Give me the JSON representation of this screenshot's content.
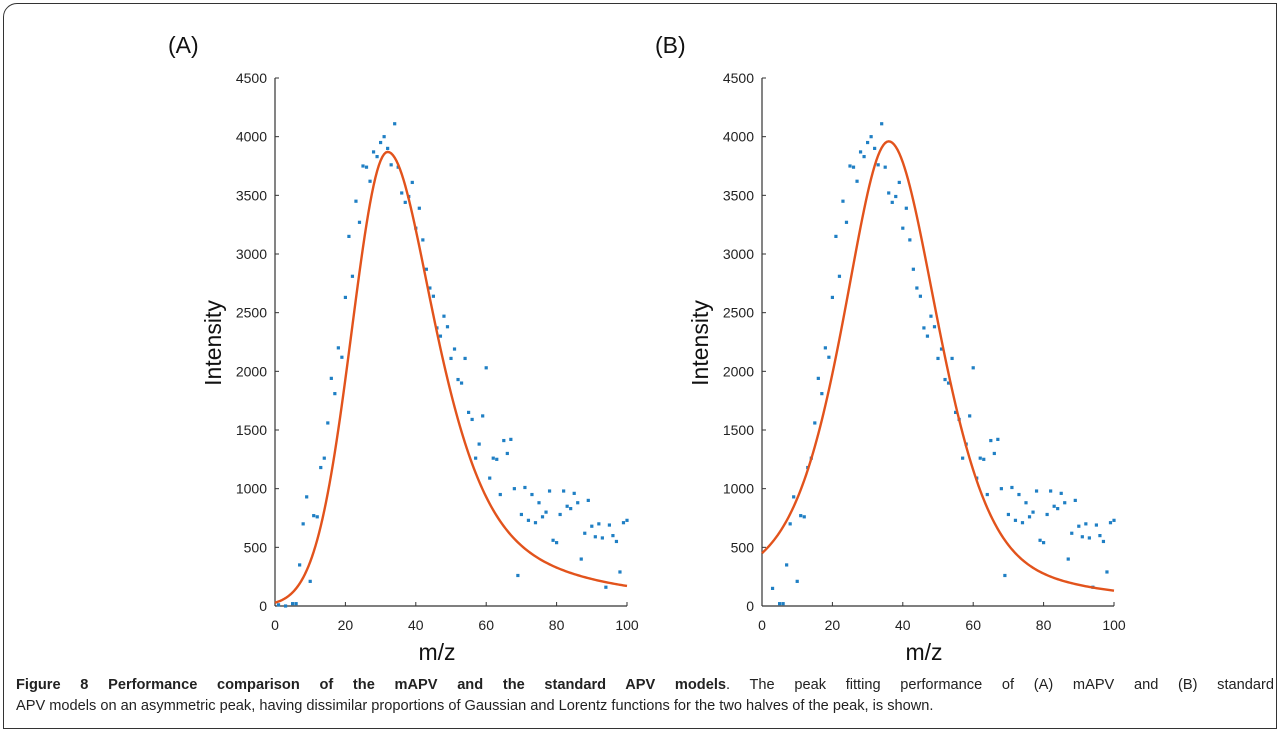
{
  "colors": {
    "points": "#1f7fc4",
    "fit": "#e2531c",
    "axis": "#333333"
  },
  "chart_data": [
    {
      "type": "scatter",
      "panel_label": "(A)",
      "xlabel": "m/z",
      "ylabel": "Intensity",
      "xlim": [
        0,
        100
      ],
      "ylim": [
        0,
        4500
      ],
      "xticks": [
        "0",
        "20",
        "40",
        "60",
        "80",
        "100"
      ],
      "yticks": [
        "0",
        "500",
        "1000",
        "1500",
        "2000",
        "2500",
        "3000",
        "3500",
        "4000",
        "4500"
      ],
      "grid": false,
      "fit_peak": {
        "x": 32,
        "y": 3870
      },
      "series": [
        {
          "kind": "points",
          "x": [
            1,
            3,
            5,
            6,
            7,
            8,
            9,
            10,
            11,
            12,
            13,
            14,
            15,
            16,
            17,
            18,
            19,
            20,
            21,
            22,
            23,
            24,
            25,
            26,
            27,
            28,
            29,
            30,
            31,
            32,
            33,
            34,
            35,
            36,
            37,
            38,
            39,
            40,
            41,
            42,
            43,
            44,
            45,
            46,
            47,
            48,
            49,
            50,
            51,
            52,
            53,
            54,
            55,
            56,
            57,
            58,
            59,
            60,
            61,
            62,
            63,
            64,
            65,
            66,
            67,
            68,
            69,
            70,
            71,
            72,
            73,
            74,
            75,
            76,
            77,
            78,
            79,
            80,
            81,
            82,
            83,
            84,
            85,
            86,
            87,
            88,
            89,
            90,
            91,
            92,
            93,
            94,
            95,
            96,
            97,
            98,
            99,
            100
          ],
          "y": [
            10,
            0,
            20,
            20,
            350,
            700,
            930,
            210,
            770,
            760,
            1180,
            1260,
            1560,
            1940,
            1810,
            2200,
            2120,
            2630,
            3150,
            2810,
            3450,
            3270,
            3750,
            3740,
            3620,
            3870,
            3830,
            3950,
            4000,
            3900,
            3760,
            4110,
            3740,
            3520,
            3440,
            3490,
            3610,
            3220,
            3390,
            3120,
            2870,
            2710,
            2640,
            2370,
            2300,
            2470,
            2380,
            2110,
            2190,
            1930,
            1900,
            2110,
            1650,
            1590,
            1260,
            1380,
            1620,
            2030,
            1090,
            1260,
            1250,
            950,
            1410,
            1300,
            1420,
            1000,
            260,
            780,
            1010,
            730,
            950,
            710,
            880,
            760,
            800,
            980,
            560,
            540,
            780,
            980,
            850,
            830,
            960,
            880,
            400,
            620,
            900,
            680,
            590,
            700,
            580,
            160,
            690,
            600,
            550,
            290,
            710,
            730
          ]
        },
        {
          "kind": "fit",
          "model": "mAPV"
        }
      ]
    },
    {
      "type": "scatter",
      "panel_label": "(B)",
      "xlabel": "m/z",
      "ylabel": "Intensity",
      "xlim": [
        0,
        100
      ],
      "ylim": [
        0,
        4500
      ],
      "xticks": [
        "0",
        "20",
        "40",
        "60",
        "80",
        "100"
      ],
      "yticks": [
        "0",
        "500",
        "1000",
        "1500",
        "2000",
        "2500",
        "3000",
        "3500",
        "4000",
        "4500"
      ],
      "grid": false,
      "fit_peak": {
        "x": 36,
        "y": 3960
      },
      "series": [
        {
          "kind": "points",
          "x": [
            3,
            5,
            6,
            7,
            8,
            9,
            10,
            11,
            12,
            13,
            14,
            15,
            16,
            17,
            18,
            19,
            20,
            21,
            22,
            23,
            24,
            25,
            26,
            27,
            28,
            29,
            30,
            31,
            32,
            33,
            34,
            35,
            36,
            37,
            38,
            39,
            40,
            41,
            42,
            43,
            44,
            45,
            46,
            47,
            48,
            49,
            50,
            51,
            52,
            53,
            54,
            55,
            56,
            57,
            58,
            59,
            60,
            61,
            62,
            63,
            64,
            65,
            66,
            67,
            68,
            69,
            70,
            71,
            72,
            73,
            74,
            75,
            76,
            77,
            78,
            79,
            80,
            81,
            82,
            83,
            84,
            85,
            86,
            87,
            88,
            89,
            90,
            91,
            92,
            93,
            94,
            95,
            96,
            97,
            98,
            99,
            100
          ],
          "y": [
            150,
            20,
            20,
            350,
            700,
            930,
            210,
            770,
            760,
            1180,
            1260,
            1560,
            1940,
            1810,
            2200,
            2120,
            2630,
            3150,
            2810,
            3450,
            3270,
            3750,
            3740,
            3620,
            3870,
            3830,
            3950,
            4000,
            3900,
            3760,
            4110,
            3740,
            3520,
            3440,
            3490,
            3610,
            3220,
            3390,
            3120,
            2870,
            2710,
            2640,
            2370,
            2300,
            2470,
            2380,
            2110,
            2190,
            1930,
            1900,
            2110,
            1650,
            1590,
            1260,
            1380,
            1620,
            2030,
            1090,
            1260,
            1250,
            950,
            1410,
            1300,
            1420,
            1000,
            260,
            780,
            1010,
            730,
            950,
            710,
            880,
            760,
            800,
            980,
            560,
            540,
            780,
            980,
            850,
            830,
            960,
            880,
            400,
            620,
            900,
            680,
            590,
            700,
            580,
            160,
            690,
            600,
            550,
            290,
            710,
            730
          ]
        },
        {
          "kind": "fit",
          "model": "standard APV"
        }
      ]
    }
  ],
  "caption": {
    "bold": "Figure 8 Performance comparison of the mAPV and the standard APV models",
    "line1": ". The peak fitting performance of (A) mAPV and (B) standard",
    "line2": "APV models on an asymmetric peak, having dissimilar proportions of Gaussian and Lorentz functions for the two halves of the peak, is shown."
  }
}
